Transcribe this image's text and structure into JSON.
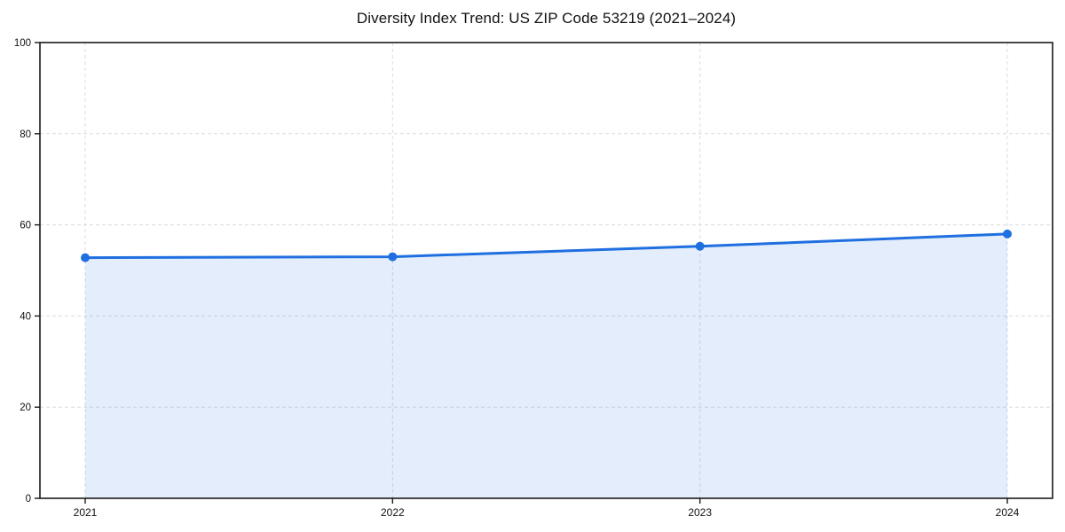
{
  "chart_data": {
    "type": "area",
    "title": "Diversity Index Trend: US ZIP Code 53219 (2021–2024)",
    "categories": [
      "2021",
      "2022",
      "2023",
      "2024"
    ],
    "values": [
      52.8,
      53.0,
      55.3,
      58.0
    ],
    "xlabel": "",
    "ylabel": "",
    "ylim": [
      0,
      100
    ],
    "yticks": [
      0,
      20,
      40,
      60,
      80,
      100
    ],
    "grid": "dashed-both-axes",
    "legend": "none",
    "marker": "circle",
    "colors": {
      "line": "#1f6fe0",
      "marker": "#1f6fe0",
      "fill": "#1f6fe0",
      "fill_opacity": 0.12,
      "gridline": "#dcdcdc",
      "spine": "#1a1a1a",
      "tick_label": "#111111",
      "title": "#111111",
      "background": "#ffffff"
    }
  }
}
